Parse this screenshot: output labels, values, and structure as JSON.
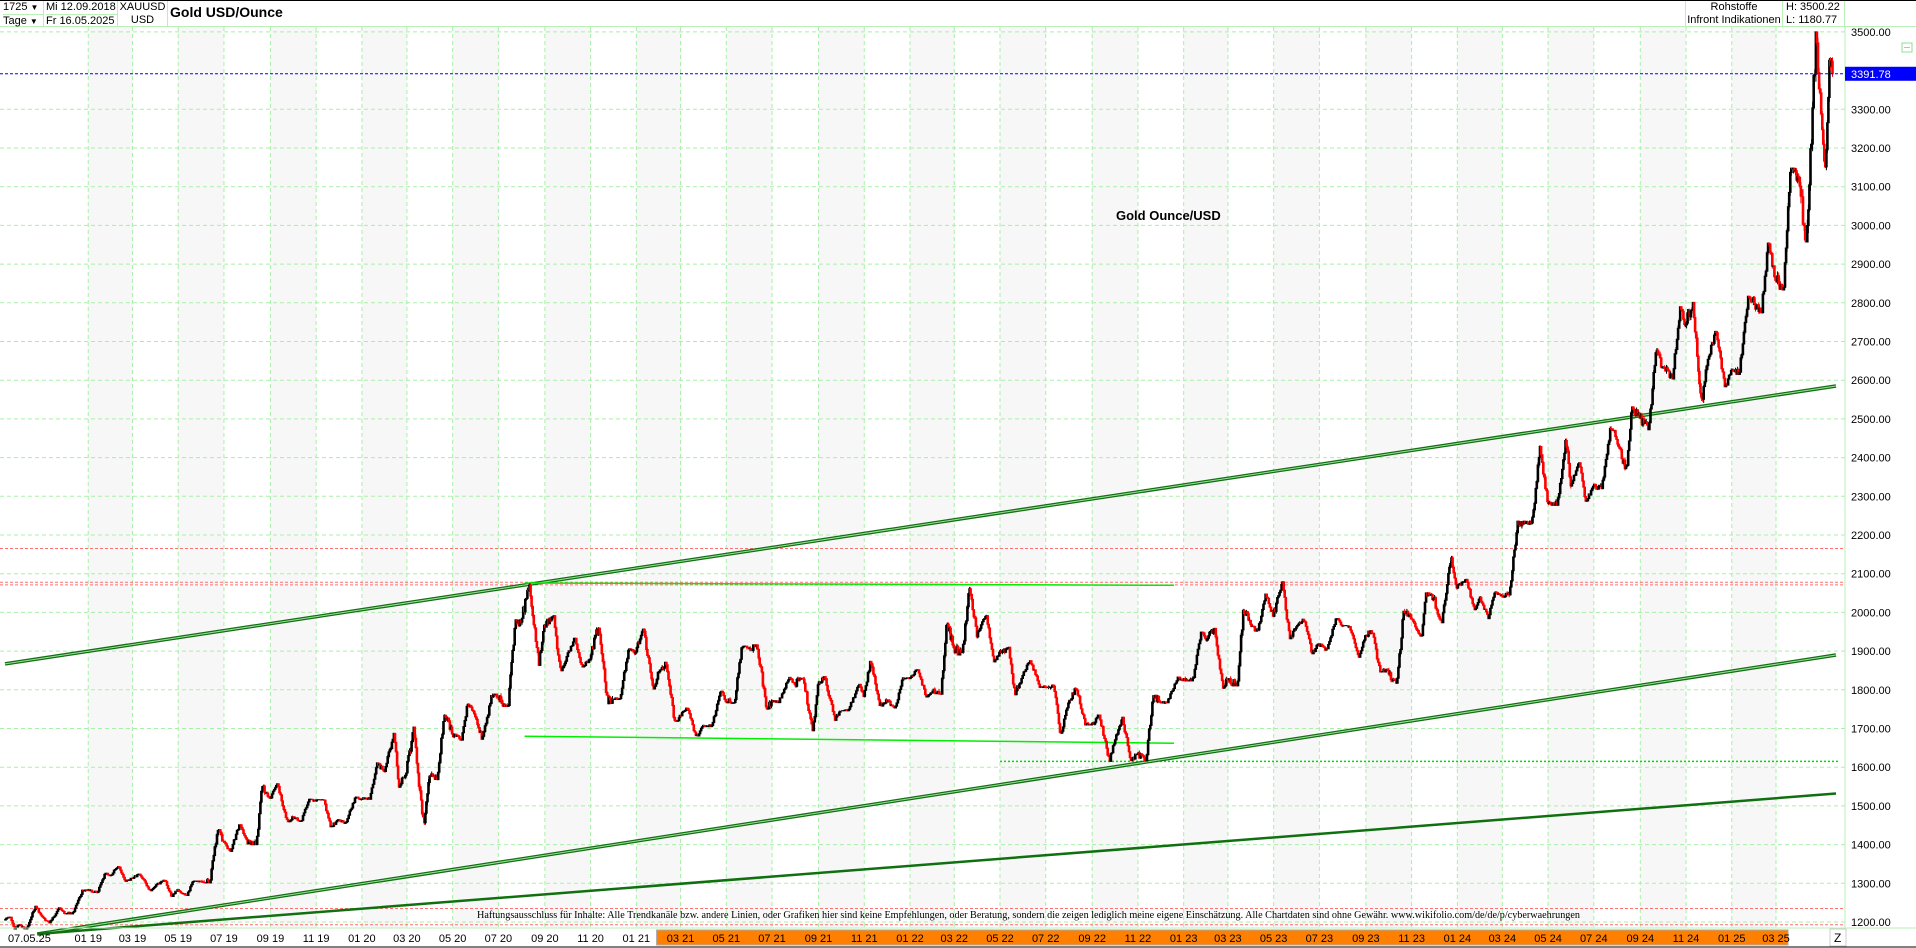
{
  "header": {
    "bars_count": "1725",
    "period": "Tage",
    "dropdown_icon": "triangle-down",
    "date_from": "Mi 12.09.2018",
    "date_to": "Fr 16.05.2025",
    "symbol": "XAUUSD",
    "currency": "USD",
    "title": "Gold USD/Ounce",
    "category": "Rohstoffe",
    "source": "Infront Indikationen",
    "high": "H: 3500.22",
    "low": "L: 1180.77"
  },
  "annotation_title": "Gold Ounce/USD",
  "disclaimer": "Haftungsausschluss für Inhalte: Alle Trendkanäle bzw. andere Linien, oder Grafiken hier sind keine Empfehlungen, oder Beratung, sondern die zeigen lediglich meine eigene Einschätzung. Alle Chartdaten sind ohne Gewähr. www.wikifolio.com/de/de/p/cyberwaehrungen",
  "last_price_label": "3391.78",
  "z_button": "Z",
  "colors": {
    "up": "#000000",
    "down": "#ff0000",
    "grid": "#a8f0a8",
    "last_price": "#0000ff",
    "highlight": "#ff8000",
    "trend_dark": "#107010",
    "trend_light": "#00ee00",
    "level_red": "#ff7070"
  },
  "chart_data": {
    "type": "candlestick",
    "title": "Gold USD/Ounce",
    "x_range": [
      "2018-09-12",
      "2025-05-16"
    ],
    "ylim": [
      1180,
      3520
    ],
    "y_ticks": [
      "1200.00",
      "1300.00",
      "1400.00",
      "1500.00",
      "1600.00",
      "1700.00",
      "1800.00",
      "1900.00",
      "2000.00",
      "2100.00",
      "2200.00",
      "2300.00",
      "2400.00",
      "2500.00",
      "2600.00",
      "2700.00",
      "2800.00",
      "2900.00",
      "3000.00",
      "3100.00",
      "3200.00",
      "3300.00",
      "3500.00"
    ],
    "x_first_label": "07.05.25",
    "x_ticks": [
      "01 19",
      "03 19",
      "05 19",
      "07 19",
      "09 19",
      "11 19",
      "01 20",
      "03 20",
      "05 20",
      "07 20",
      "09 20",
      "11 20",
      "01 21",
      "03 21",
      "05 21",
      "07 21",
      "09 21",
      "11 21",
      "01 22",
      "03 22",
      "05 22",
      "07 22",
      "09 22",
      "11 22",
      "01 23",
      "03 23",
      "05 23",
      "07 23",
      "09 23",
      "11 23",
      "01 24",
      "03 24",
      "05 24",
      "07 24",
      "09 24",
      "11 24",
      "01 25",
      "03 25"
    ],
    "x_highlight_from": "03 21",
    "grid": true,
    "last_price": 3391.78,
    "monthly_ohlc_columns": [
      "month",
      "open",
      "high",
      "low",
      "close"
    ],
    "monthly_ohlc": [
      [
        "2018-09",
        1205,
        1214,
        1182,
        1192
      ],
      [
        "2018-10",
        1192,
        1243,
        1182,
        1215
      ],
      [
        "2018-11",
        1215,
        1237,
        1196,
        1222
      ],
      [
        "2018-12",
        1222,
        1284,
        1221,
        1282
      ],
      [
        "2019-01",
        1282,
        1326,
        1276,
        1321
      ],
      [
        "2019-02",
        1321,
        1346,
        1303,
        1313
      ],
      [
        "2019-03",
        1313,
        1325,
        1281,
        1292
      ],
      [
        "2019-04",
        1292,
        1310,
        1266,
        1284
      ],
      [
        "2019-05",
        1284,
        1306,
        1266,
        1305
      ],
      [
        "2019-06",
        1305,
        1439,
        1301,
        1409
      ],
      [
        "2019-07",
        1409,
        1452,
        1382,
        1413
      ],
      [
        "2019-08",
        1413,
        1555,
        1400,
        1520
      ],
      [
        "2019-09",
        1520,
        1557,
        1459,
        1472
      ],
      [
        "2019-10",
        1472,
        1517,
        1460,
        1513
      ],
      [
        "2019-11",
        1513,
        1516,
        1445,
        1464
      ],
      [
        "2019-12",
        1464,
        1523,
        1454,
        1517
      ],
      [
        "2020-01",
        1517,
        1611,
        1517,
        1589
      ],
      [
        "2020-02",
        1589,
        1689,
        1548,
        1585
      ],
      [
        "2020-03",
        1585,
        1704,
        1451,
        1577
      ],
      [
        "2020-04",
        1577,
        1747,
        1568,
        1686
      ],
      [
        "2020-05",
        1686,
        1765,
        1670,
        1730
      ],
      [
        "2020-06",
        1730,
        1789,
        1671,
        1781
      ],
      [
        "2020-07",
        1781,
        1981,
        1757,
        1975
      ],
      [
        "2020-08",
        1975,
        2075,
        1863,
        1967
      ],
      [
        "2020-09",
        1967,
        1992,
        1849,
        1886
      ],
      [
        "2020-10",
        1886,
        1933,
        1859,
        1879
      ],
      [
        "2020-11",
        1879,
        1966,
        1764,
        1776
      ],
      [
        "2020-12",
        1776,
        1906,
        1775,
        1898
      ],
      [
        "2021-01",
        1898,
        1959,
        1802,
        1847
      ],
      [
        "2021-02",
        1847,
        1871,
        1717,
        1734
      ],
      [
        "2021-03",
        1734,
        1755,
        1677,
        1708
      ],
      [
        "2021-04",
        1708,
        1798,
        1705,
        1769
      ],
      [
        "2021-05",
        1769,
        1913,
        1765,
        1906
      ],
      [
        "2021-06",
        1906,
        1916,
        1750,
        1770
      ],
      [
        "2021-07",
        1770,
        1832,
        1767,
        1814
      ],
      [
        "2021-08",
        1814,
        1834,
        1688,
        1813
      ],
      [
        "2021-09",
        1813,
        1834,
        1721,
        1743
      ],
      [
        "2021-10",
        1743,
        1814,
        1746,
        1783
      ],
      [
        "2021-11",
        1783,
        1877,
        1758,
        1774
      ],
      [
        "2021-12",
        1774,
        1831,
        1753,
        1829
      ],
      [
        "2022-01",
        1829,
        1853,
        1780,
        1797
      ],
      [
        "2022-02",
        1797,
        1974,
        1788,
        1909
      ],
      [
        "2022-03",
        1909,
        2070,
        1890,
        1937
      ],
      [
        "2022-04",
        1937,
        1998,
        1872,
        1897
      ],
      [
        "2022-05",
        1897,
        1910,
        1787,
        1837
      ],
      [
        "2022-06",
        1837,
        1879,
        1806,
        1807
      ],
      [
        "2022-07",
        1807,
        1814,
        1681,
        1766
      ],
      [
        "2022-08",
        1766,
        1808,
        1709,
        1711
      ],
      [
        "2022-09",
        1711,
        1735,
        1615,
        1660
      ],
      [
        "2022-10",
        1660,
        1730,
        1617,
        1633
      ],
      [
        "2022-11",
        1633,
        1786,
        1616,
        1768
      ],
      [
        "2022-12",
        1768,
        1833,
        1765,
        1824
      ],
      [
        "2023-01",
        1824,
        1949,
        1823,
        1928
      ],
      [
        "2023-02",
        1928,
        1959,
        1804,
        1827
      ],
      [
        "2023-03",
        1827,
        2009,
        1810,
        1969
      ],
      [
        "2023-04",
        1969,
        2048,
        1949,
        1990
      ],
      [
        "2023-05",
        1990,
        2079,
        1932,
        1963
      ],
      [
        "2023-06",
        1963,
        1984,
        1893,
        1919
      ],
      [
        "2023-07",
        1919,
        1987,
        1902,
        1965
      ],
      [
        "2023-08",
        1965,
        1966,
        1884,
        1940
      ],
      [
        "2023-09",
        1940,
        1953,
        1846,
        1849
      ],
      [
        "2023-10",
        1849,
        2009,
        1810,
        1983
      ],
      [
        "2023-11",
        1983,
        2052,
        1931,
        2036
      ],
      [
        "2023-12",
        2036,
        2146,
        1973,
        2063
      ],
      [
        "2024-01",
        2063,
        2088,
        2001,
        2039
      ],
      [
        "2024-02",
        2039,
        2055,
        1984,
        2044
      ],
      [
        "2024-03",
        2044,
        2236,
        2039,
        2230
      ],
      [
        "2024-04",
        2230,
        2432,
        2228,
        2286
      ],
      [
        "2024-05",
        2286,
        2450,
        2277,
        2327
      ],
      [
        "2024-06",
        2327,
        2388,
        2287,
        2326
      ],
      [
        "2024-07",
        2326,
        2484,
        2318,
        2447
      ],
      [
        "2024-08",
        2447,
        2531,
        2364,
        2503
      ],
      [
        "2024-09",
        2503,
        2685,
        2472,
        2634
      ],
      [
        "2024-10",
        2634,
        2790,
        2603,
        2744
      ],
      [
        "2024-11",
        2744,
        2801,
        2537,
        2654
      ],
      [
        "2024-12",
        2654,
        2726,
        2583,
        2625
      ],
      [
        "2025-01",
        2625,
        2817,
        2615,
        2798
      ],
      [
        "2025-02",
        2798,
        2956,
        2772,
        2858
      ],
      [
        "2025-03",
        2858,
        3148,
        2833,
        3124
      ],
      [
        "2025-04",
        3124,
        3500,
        2957,
        3288
      ],
      [
        "2025-05",
        3288,
        3435,
        3121,
        3392
      ]
    ],
    "trend_lines": [
      {
        "style": "dark-double",
        "from": [
          "2018-09-12",
          1867
        ],
        "to": [
          "2025-05-20",
          2585
        ]
      },
      {
        "style": "dark-double",
        "from": [
          "2018-10-25",
          1169
        ],
        "to": [
          "2025-05-20",
          1890
        ]
      },
      {
        "style": "dark-thick",
        "from": [
          "2018-10-25",
          1169
        ],
        "to": [
          "2025-05-20",
          1532
        ]
      },
      {
        "style": "light",
        "from": [
          "2020-08-05",
          2076
        ],
        "to": [
          "2022-12-19",
          2070
        ]
      },
      {
        "style": "light",
        "from": [
          "2020-08-05",
          1680
        ],
        "to": [
          "2022-12-19",
          1662
        ]
      }
    ],
    "horizontal_levels": [
      {
        "style": "red-dashed",
        "price": 2165
      },
      {
        "style": "red-dashed",
        "price": 2078
      },
      {
        "style": "red-dashed",
        "price": 2071
      },
      {
        "style": "red-dashed",
        "price": 1235
      },
      {
        "style": "red-dashed",
        "price": 1193
      },
      {
        "style": "green-dotted",
        "price": 1615
      }
    ]
  }
}
